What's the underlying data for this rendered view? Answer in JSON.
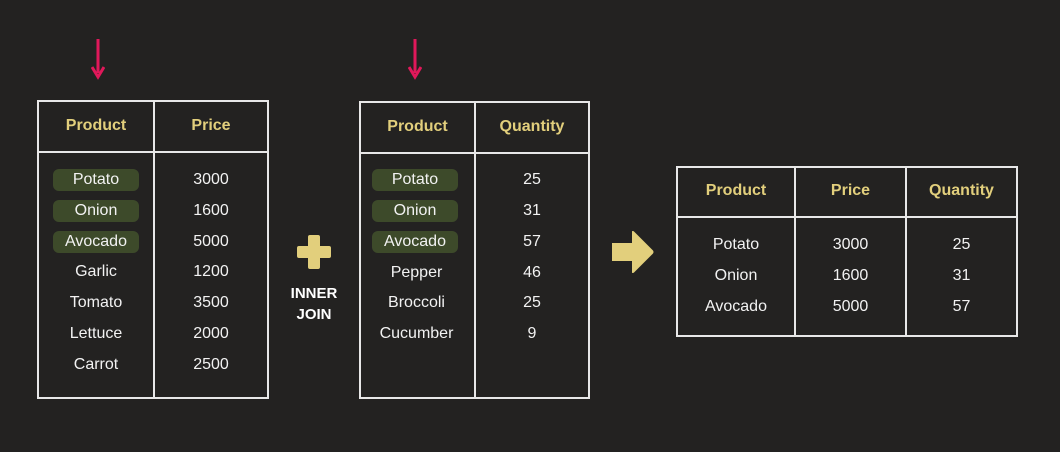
{
  "colors": {
    "background": "#232221",
    "header_text": "#e2cf7c",
    "highlight": "#3d4a2a",
    "arrow": "#e0185a",
    "operator": "#e2cf7c",
    "border": "#e8e8e8"
  },
  "left_table": {
    "headers": [
      "Product",
      "Price"
    ],
    "rows": [
      {
        "product": "Potato",
        "price": "3000",
        "matched": true
      },
      {
        "product": "Onion",
        "price": "1600",
        "matched": true
      },
      {
        "product": "Avocado",
        "price": "5000",
        "matched": true
      },
      {
        "product": "Garlic",
        "price": "1200",
        "matched": false
      },
      {
        "product": "Tomato",
        "price": "3500",
        "matched": false
      },
      {
        "product": "Lettuce",
        "price": "2000",
        "matched": false
      },
      {
        "product": "Carrot",
        "price": "2500",
        "matched": false
      }
    ]
  },
  "right_table": {
    "headers": [
      "Product",
      "Quantity"
    ],
    "rows": [
      {
        "product": "Potato",
        "quantity": "25",
        "matched": true
      },
      {
        "product": "Onion",
        "quantity": "31",
        "matched": true
      },
      {
        "product": "Avocado",
        "quantity": "57",
        "matched": true
      },
      {
        "product": "Pepper",
        "quantity": "46",
        "matched": false
      },
      {
        "product": "Broccoli",
        "quantity": "25",
        "matched": false
      },
      {
        "product": "Cucumber",
        "quantity": "9",
        "matched": false
      }
    ]
  },
  "operator": {
    "icon": "plus-icon",
    "label_line1": "INNER",
    "label_line2": "JOIN"
  },
  "result_arrow_icon": "arrow-right-icon",
  "key_arrow_icon": "arrow-down-icon",
  "result_table": {
    "headers": [
      "Product",
      "Price",
      "Quantity"
    ],
    "rows": [
      {
        "product": "Potato",
        "price": "3000",
        "quantity": "25"
      },
      {
        "product": "Onion",
        "price": "1600",
        "quantity": "31"
      },
      {
        "product": "Avocado",
        "price": "5000",
        "quantity": "57"
      }
    ]
  }
}
